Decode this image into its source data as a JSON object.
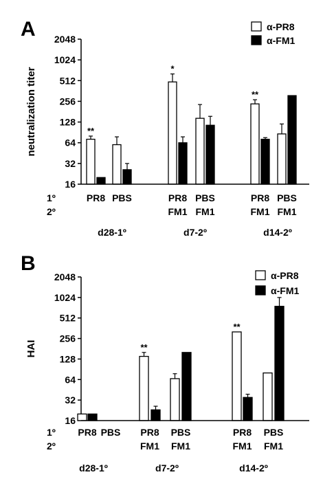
{
  "chart_data": [
    {
      "type": "bar",
      "panel_label": "A",
      "ylabel": "neutralization titer",
      "y_scale": "log2",
      "ylim": [
        16,
        2048
      ],
      "y_ticks": [
        "16",
        "32",
        "64",
        "128",
        "256",
        "512",
        "1024",
        "2048"
      ],
      "row_labels": [
        "1º",
        "2º"
      ],
      "groups": [
        {
          "label": "d28-1º",
          "bars": [
            {
              "series": "α-PR8",
              "value": 72,
              "err": 80,
              "cat1": "PR8",
              "cat2": "",
              "sig": "**"
            },
            {
              "series": "α-FM1",
              "value": 20,
              "err": null,
              "cat1": "",
              "cat2": "",
              "sig": ""
            },
            {
              "series": "α-PR8",
              "value": 60,
              "err": 78,
              "cat1": "PBS",
              "cat2": "",
              "sig": ""
            },
            {
              "series": "α-FM1",
              "value": 26,
              "err": 32,
              "cat1": "",
              "cat2": "",
              "sig": ""
            }
          ]
        },
        {
          "label": "d7-2º",
          "bars": [
            {
              "series": "α-PR8",
              "value": 490,
              "err": 640,
              "cat1": "PR8",
              "cat2": "FM1",
              "sig": "*"
            },
            {
              "series": "α-FM1",
              "value": 64,
              "err": 78,
              "cat1": "",
              "cat2": "",
              "sig": ""
            },
            {
              "series": "α-PR8",
              "value": 145,
              "err": 230,
              "cat1": "PBS",
              "cat2": "FM1",
              "sig": ""
            },
            {
              "series": "α-FM1",
              "value": 115,
              "err": 155,
              "cat1": "",
              "cat2": "",
              "sig": ""
            }
          ]
        },
        {
          "label": "d14-2º",
          "bars": [
            {
              "series": "α-PR8",
              "value": 235,
              "err": 270,
              "cat1": "PR8",
              "cat2": "FM1",
              "sig": "**"
            },
            {
              "series": "α-FM1",
              "value": 72,
              "err": 76,
              "cat1": "",
              "cat2": "",
              "sig": ""
            },
            {
              "series": "α-PR8",
              "value": 86,
              "err": 120,
              "cat1": "PBS",
              "cat2": "FM1",
              "sig": ""
            },
            {
              "series": "α-FM1",
              "value": 310,
              "err": null,
              "cat1": "",
              "cat2": "",
              "sig": ""
            }
          ]
        }
      ],
      "legend": [
        {
          "name": "α-PR8",
          "color": "#ffffff"
        },
        {
          "name": "α-FM1",
          "color": "#000000"
        }
      ]
    },
    {
      "type": "bar",
      "panel_label": "B",
      "ylabel": "HAI",
      "y_scale": "log2",
      "ylim": [
        16,
        2048
      ],
      "y_ticks": [
        "16",
        "32",
        "64",
        "128",
        "256",
        "512",
        "1024",
        "2048"
      ],
      "row_labels": [
        "1º",
        "2º"
      ],
      "groups": [
        {
          "label": "d28-1º",
          "bars": [
            {
              "series": "α-PR8",
              "value": 20,
              "err": null,
              "cat1": "PR8",
              "cat2": "",
              "sig": ""
            },
            {
              "series": "α-FM1",
              "value": 20,
              "err": null,
              "cat1": "",
              "cat2": "",
              "sig": ""
            },
            {
              "series": "α-PR8",
              "value": null,
              "err": null,
              "cat1": "PBS",
              "cat2": "",
              "sig": ""
            },
            {
              "series": "α-FM1",
              "value": null,
              "err": null,
              "cat1": "",
              "cat2": "",
              "sig": ""
            }
          ]
        },
        {
          "label": "d7-2º",
          "bars": [
            {
              "series": "α-PR8",
              "value": 140,
              "err": 160,
              "cat1": "PR8",
              "cat2": "FM1",
              "sig": "**"
            },
            {
              "series": "α-FM1",
              "value": 23,
              "err": 26,
              "cat1": "",
              "cat2": "",
              "sig": ""
            },
            {
              "series": "α-PR8",
              "value": 66,
              "err": 78,
              "cat1": "PBS",
              "cat2": "FM1",
              "sig": ""
            },
            {
              "series": "α-FM1",
              "value": 160,
              "err": null,
              "cat1": "",
              "cat2": "",
              "sig": ""
            }
          ]
        },
        {
          "label": "d14-2º",
          "bars": [
            {
              "series": "α-PR8",
              "value": 320,
              "err": null,
              "cat1": "PR8",
              "cat2": "FM1",
              "sig": "**"
            },
            {
              "series": "α-FM1",
              "value": 35,
              "err": 39,
              "cat1": "",
              "cat2": "",
              "sig": ""
            },
            {
              "series": "α-PR8",
              "value": 80,
              "err": null,
              "cat1": "PBS",
              "cat2": "FM1",
              "sig": ""
            },
            {
              "series": "α-FM1",
              "value": 760,
              "err": 1024,
              "cat1": "",
              "cat2": "",
              "sig": ""
            }
          ]
        }
      ],
      "legend": [
        {
          "name": "α-PR8",
          "color": "#ffffff"
        },
        {
          "name": "α-FM1",
          "color": "#000000"
        }
      ]
    }
  ]
}
